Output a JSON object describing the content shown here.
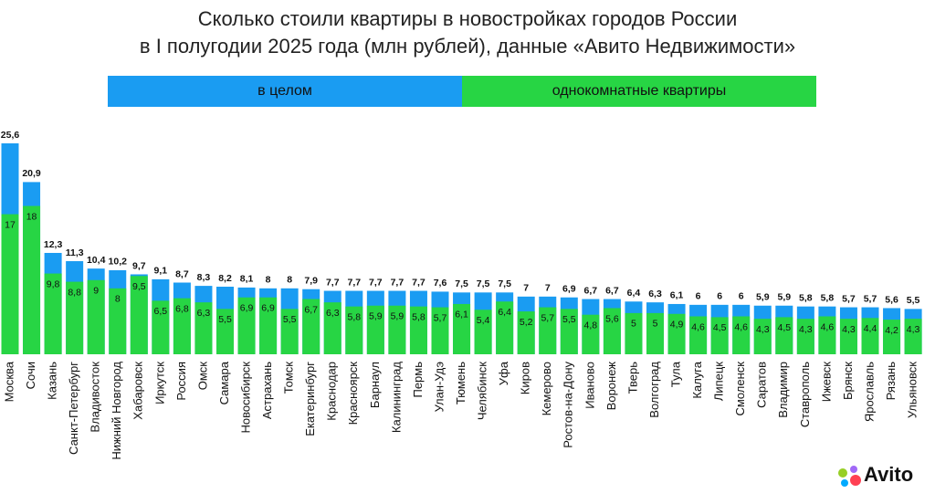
{
  "chart_data": {
    "type": "bar",
    "title": [
      "Сколько стоили квартиры в новостройках городов России",
      "в I полугодии 2025 года (млн рублей), данные «Авито Недвижимости»"
    ],
    "categories": [
      "Москва",
      "Сочи",
      "Казань",
      "Санкт-Петербург",
      "Владивосток",
      "Нижний Новгород",
      "Хабаровск",
      "Иркутск",
      "Россия",
      "Омск",
      "Самара",
      "Новосибирск",
      "Астрахань",
      "Томск",
      "Екатеринбург",
      "Краснодар",
      "Красноярск",
      "Барнаул",
      "Калининград",
      "Пермь",
      "Улан-Удэ",
      "Тюмень",
      "Челябинск",
      "Уфа",
      "Киров",
      "Кемерово",
      "Ростов-на-Дону",
      "Иваново",
      "Воронеж",
      "Тверь",
      "Волгоград",
      "Тула",
      "Калуга",
      "Липецк",
      "Смоленск",
      "Саратов",
      "Владимир",
      "Ставрополь",
      "Ижевск",
      "Брянск",
      "Ярославль",
      "Рязань",
      "Ульяновск"
    ],
    "series": [
      {
        "name": "в целом",
        "color": "#1a9cf2",
        "values": [
          25.6,
          20.9,
          12.3,
          11.3,
          10.4,
          10.2,
          9.7,
          9.1,
          8.7,
          8.3,
          8.2,
          8.1,
          8,
          8,
          7.9,
          7.7,
          7.7,
          7.7,
          7.7,
          7.7,
          7.6,
          7.5,
          7.5,
          7.5,
          7,
          7,
          6.9,
          6.7,
          6.7,
          6.4,
          6.3,
          6.1,
          6,
          6,
          6,
          5.9,
          5.9,
          5.8,
          5.8,
          5.7,
          5.7,
          5.6,
          5.5
        ],
        "value_labels": [
          "25,6",
          "20,9",
          "12,3",
          "11,3",
          "10,4",
          "10,2",
          "9,7",
          "9,1",
          "8,7",
          "8,3",
          "8,2",
          "8,1",
          "8",
          "8",
          "7,9",
          "7,7",
          "7,7",
          "7,7",
          "7,7",
          "7,7",
          "7,6",
          "7,5",
          "7,5",
          "7,5",
          "7",
          "7",
          "6,9",
          "6,7",
          "6,7",
          "6,4",
          "6,3",
          "6,1",
          "6",
          "6",
          "6",
          "5,9",
          "5,9",
          "5,8",
          "5,8",
          "5,7",
          "5,7",
          "5,6",
          "5,5"
        ]
      },
      {
        "name": "однокомнатные квартиры",
        "color": "#27d544",
        "values": [
          17,
          18,
          9.8,
          8.8,
          9,
          8,
          9.5,
          6.5,
          6.8,
          6.3,
          5.5,
          6.9,
          6.9,
          5.5,
          6.7,
          6.3,
          5.8,
          5.9,
          5.9,
          5.8,
          5.7,
          6.1,
          5.4,
          6.4,
          5.2,
          5.7,
          5.5,
          4.8,
          5.6,
          5,
          5,
          4.9,
          4.6,
          4.5,
          4.6,
          4.3,
          4.5,
          4.3,
          4.6,
          4.3,
          4.4,
          4.2,
          4.3
        ],
        "value_labels": [
          "17",
          "18",
          "9,8",
          "8,8",
          "9",
          "8",
          "9,5",
          "6,5",
          "6,8",
          "6,3",
          "5,5",
          "6,9",
          "6,9",
          "5,5",
          "6,7",
          "6,3",
          "5,8",
          "5,9",
          "5,9",
          "5,8",
          "5,7",
          "6,1",
          "5,4",
          "6,4",
          "5,2",
          "5,7",
          "5,5",
          "4,8",
          "5,6",
          "5",
          "5",
          "4,9",
          "4,6",
          "4,5",
          "4,6",
          "4,3",
          "4,5",
          "4,3",
          "4,6",
          "4,3",
          "4,4",
          "4,2",
          "4,3"
        ]
      }
    ]
  },
  "logo": "Avito"
}
